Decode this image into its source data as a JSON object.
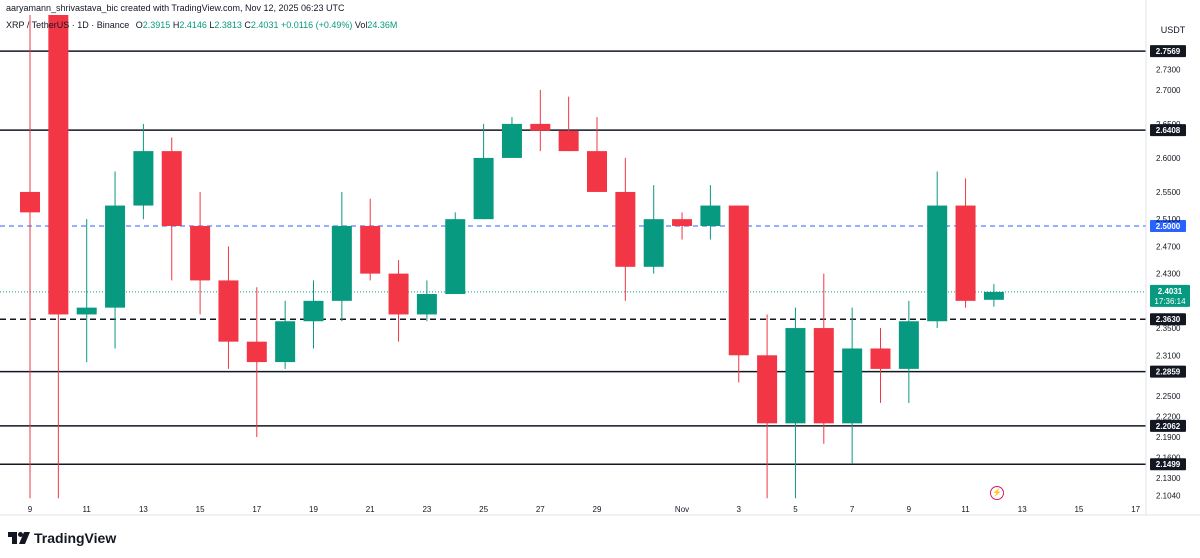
{
  "header": {
    "credit": "aaryamann_shrivastava_bic created with TradingView.com, Nov 12, 2025 06:23 UTC",
    "symbol": "XRP / TetherUS · 1D · Binance",
    "o_label": "O",
    "o_value": "2.3915",
    "h_label": "H",
    "h_value": "2.4146",
    "l_label": "L",
    "l_value": "2.3813",
    "c_label": "C",
    "c_value": "2.4031",
    "change": "+0.0116 (+0.49%)",
    "vol_label": "Vol",
    "vol_value": "24.36M"
  },
  "currency": "USDT",
  "brand": "TradingView",
  "colors": {
    "up": "#089981",
    "down": "#f23645",
    "dashed_blue": "#2962ff",
    "line": "#131722"
  },
  "chart_data": {
    "type": "candlestick",
    "ylim": [
      2.09,
      2.81
    ],
    "y_ticks": [
      "2.7300",
      "2.7000",
      "2.6500",
      "2.6000",
      "2.5500",
      "2.5100",
      "2.4700",
      "2.4300",
      "2.3500",
      "2.3100",
      "2.2500",
      "2.2200",
      "2.1900",
      "2.1600",
      "2.1300",
      "2.1040"
    ],
    "x_tick_labels": [
      {
        "label": "9",
        "i": 0
      },
      {
        "label": "11",
        "i": 2
      },
      {
        "label": "13",
        "i": 4
      },
      {
        "label": "15",
        "i": 6
      },
      {
        "label": "17",
        "i": 8
      },
      {
        "label": "19",
        "i": 10
      },
      {
        "label": "21",
        "i": 12
      },
      {
        "label": "23",
        "i": 14
      },
      {
        "label": "25",
        "i": 16
      },
      {
        "label": "27",
        "i": 18
      },
      {
        "label": "29",
        "i": 20
      },
      {
        "label": "Nov",
        "i": 23
      },
      {
        "label": "3",
        "i": 25
      },
      {
        "label": "5",
        "i": 27
      },
      {
        "label": "7",
        "i": 29
      },
      {
        "label": "9",
        "i": 31
      },
      {
        "label": "11",
        "i": 33
      },
      {
        "label": "13",
        "i": 35
      },
      {
        "label": "15",
        "i": 37
      },
      {
        "label": "17",
        "i": 39
      }
    ],
    "candles": [
      {
        "o": 2.55,
        "h": 2.81,
        "l": 2.1,
        "c": 2.52
      },
      {
        "o": 2.81,
        "h": 2.81,
        "l": 2.1,
        "c": 2.37
      },
      {
        "o": 2.37,
        "h": 2.51,
        "l": 2.3,
        "c": 2.38
      },
      {
        "o": 2.38,
        "h": 2.58,
        "l": 2.32,
        "c": 2.53
      },
      {
        "o": 2.53,
        "h": 2.65,
        "l": 2.51,
        "c": 2.61
      },
      {
        "o": 2.61,
        "h": 2.63,
        "l": 2.42,
        "c": 2.5
      },
      {
        "o": 2.5,
        "h": 2.55,
        "l": 2.37,
        "c": 2.42
      },
      {
        "o": 2.42,
        "h": 2.47,
        "l": 2.29,
        "c": 2.33
      },
      {
        "o": 2.33,
        "h": 2.41,
        "l": 2.19,
        "c": 2.3
      },
      {
        "o": 2.3,
        "h": 2.39,
        "l": 2.29,
        "c": 2.36
      },
      {
        "o": 2.36,
        "h": 2.42,
        "l": 2.32,
        "c": 2.39
      },
      {
        "o": 2.39,
        "h": 2.55,
        "l": 2.36,
        "c": 2.5
      },
      {
        "o": 2.5,
        "h": 2.54,
        "l": 2.42,
        "c": 2.43
      },
      {
        "o": 2.43,
        "h": 2.45,
        "l": 2.33,
        "c": 2.37
      },
      {
        "o": 2.37,
        "h": 2.42,
        "l": 2.36,
        "c": 2.4
      },
      {
        "o": 2.4,
        "h": 2.52,
        "l": 2.4,
        "c": 2.51
      },
      {
        "o": 2.51,
        "h": 2.65,
        "l": 2.51,
        "c": 2.6
      },
      {
        "o": 2.6,
        "h": 2.66,
        "l": 2.6,
        "c": 2.65
      },
      {
        "o": 2.65,
        "h": 2.7,
        "l": 2.61,
        "c": 2.64
      },
      {
        "o": 2.64,
        "h": 2.69,
        "l": 2.61,
        "c": 2.61
      },
      {
        "o": 2.61,
        "h": 2.66,
        "l": 2.55,
        "c": 2.55
      },
      {
        "o": 2.55,
        "h": 2.6,
        "l": 2.39,
        "c": 2.44
      },
      {
        "o": 2.44,
        "h": 2.56,
        "l": 2.43,
        "c": 2.51
      },
      {
        "o": 2.51,
        "h": 2.52,
        "l": 2.48,
        "c": 2.5
      },
      {
        "o": 2.5,
        "h": 2.56,
        "l": 2.48,
        "c": 2.53
      },
      {
        "o": 2.53,
        "h": 2.53,
        "l": 2.27,
        "c": 2.31
      },
      {
        "o": 2.31,
        "h": 2.37,
        "l": 2.1,
        "c": 2.21
      },
      {
        "o": 2.21,
        "h": 2.38,
        "l": 2.1,
        "c": 2.35
      },
      {
        "o": 2.35,
        "h": 2.43,
        "l": 2.18,
        "c": 2.21
      },
      {
        "o": 2.21,
        "h": 2.38,
        "l": 2.15,
        "c": 2.32
      },
      {
        "o": 2.32,
        "h": 2.35,
        "l": 2.24,
        "c": 2.29
      },
      {
        "o": 2.29,
        "h": 2.39,
        "l": 2.24,
        "c": 2.36
      },
      {
        "o": 2.36,
        "h": 2.58,
        "l": 2.35,
        "c": 2.53
      },
      {
        "o": 2.53,
        "h": 2.57,
        "l": 2.38,
        "c": 2.39
      },
      {
        "o": 2.3915,
        "h": 2.4146,
        "l": 2.3813,
        "c": 2.4031
      }
    ],
    "horizontal_levels": [
      {
        "value": 2.7569,
        "label": "2.7569",
        "style": "solid"
      },
      {
        "value": 2.6408,
        "label": "2.6408",
        "style": "solid"
      },
      {
        "value": 2.5,
        "label": "2.5000",
        "style": "dashed-blue"
      },
      {
        "value": 2.363,
        "label": "2.3630",
        "style": "dashed"
      },
      {
        "value": 2.2859,
        "label": "2.2859",
        "style": "solid"
      },
      {
        "value": 2.2062,
        "label": "2.2062",
        "style": "solid"
      },
      {
        "value": 2.1499,
        "label": "2.1499",
        "style": "solid"
      }
    ],
    "last_price": {
      "value": 2.4031,
      "label": "2.4031",
      "countdown": "17:36:14"
    }
  }
}
